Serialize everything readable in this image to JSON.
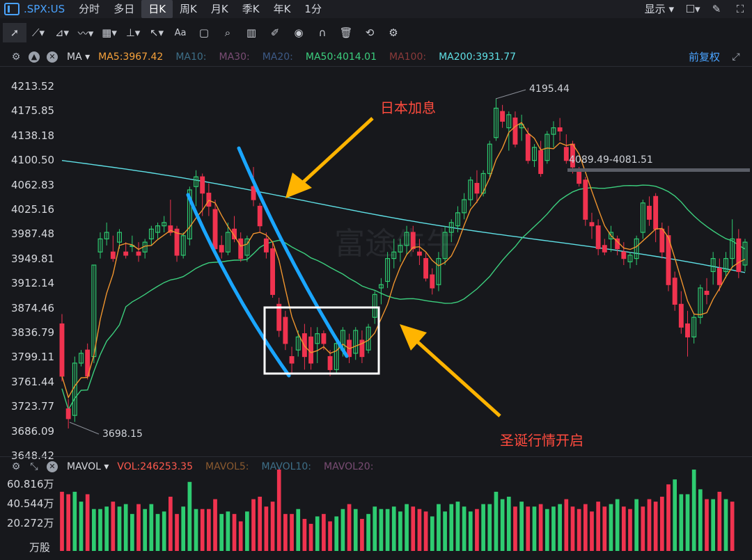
{
  "header": {
    "symbol": ".SPX:US",
    "tabs": [
      "分时",
      "多日",
      "日K",
      "周K",
      "月K",
      "季K",
      "年K",
      "1分"
    ],
    "active_tab": "日K",
    "display_label": "显示"
  },
  "ma_bar": {
    "indicator": "MA",
    "items": [
      {
        "label": "MA5:3967.42",
        "color": "#f7a23b"
      },
      {
        "label": "MA10:",
        "color": "#3e6f88"
      },
      {
        "label": "MA30:",
        "color": "#7a4d74"
      },
      {
        "label": "MA20:",
        "color": "#3d5a86"
      },
      {
        "label": "MA50:4014.01",
        "color": "#3ccf7e"
      },
      {
        "label": "MA100:",
        "color": "#8a3a3a"
      },
      {
        "label": "MA200:3931.77",
        "color": "#5fe0e6"
      }
    ],
    "adjust_label": "前复权"
  },
  "vol_bar": {
    "indicator": "MAVOL",
    "items": [
      {
        "label": "VOL:246253.35",
        "color": "#ff5a4e"
      },
      {
        "label": "MAVOL5:",
        "color": "#8a5a2f"
      },
      {
        "label": "MAVOL10:",
        "color": "#3e6f88"
      },
      {
        "label": "MAVOL20:",
        "color": "#7a4d74"
      }
    ]
  },
  "annotations": {
    "japan_rate_hike": "日本加息",
    "christmas_rally": "圣诞行情开启",
    "high_label": "4195.44",
    "low_label": "3698.15",
    "range_label": "4089.49-4081.51",
    "watermark": "富途牛牛"
  },
  "colors": {
    "up": "#2ecc71",
    "down": "#f0334f",
    "ma5": "#f0952e",
    "ma50": "#3ccf7e",
    "ma200": "#5fe0e6",
    "trend": "#1aa6ff",
    "arrow": "#ffb400"
  },
  "chart_data": {
    "type": "candlestick",
    "price_axis_ticks": [
      "4213.52",
      "4175.85",
      "4138.18",
      "4100.50",
      "4062.83",
      "4025.16",
      "3987.48",
      "3949.81",
      "3912.14",
      "3874.46",
      "3836.79",
      "3799.11",
      "3761.44",
      "3723.77",
      "3686.09",
      "3648.42"
    ],
    "volume_axis_ticks": [
      "60.816万",
      "40.544万",
      "20.272万"
    ],
    "volume_unit": "万股",
    "ylim": [
      3648.42,
      4213.52
    ],
    "candles": [
      [
        3850,
        3865,
        3762,
        3770
      ],
      [
        3720,
        3735,
        3690,
        3705
      ],
      [
        3710,
        3800,
        3700,
        3790
      ],
      [
        3790,
        3810,
        3785,
        3805
      ],
      [
        3810,
        3820,
        3765,
        3770
      ],
      [
        3800,
        3940,
        3790,
        3940
      ],
      [
        3960,
        3990,
        3950,
        3980
      ],
      [
        3980,
        4005,
        3970,
        3990
      ],
      [
        3960,
        3985,
        3945,
        3950
      ],
      [
        3975,
        3995,
        3965,
        3990
      ],
      [
        3960,
        3975,
        3950,
        3955
      ],
      [
        3970,
        3985,
        3960,
        3970
      ],
      [
        3960,
        3975,
        3945,
        3955
      ],
      [
        3960,
        3980,
        3950,
        3975
      ],
      [
        3980,
        4000,
        3970,
        3995
      ],
      [
        3990,
        4005,
        3980,
        4000
      ],
      [
        4000,
        4015,
        3990,
        4005
      ],
      [
        4000,
        4040,
        3985,
        3990
      ],
      [
        3995,
        4000,
        3945,
        3955
      ],
      [
        3955,
        3990,
        3950,
        3985
      ],
      [
        3980,
        4060,
        3970,
        4055
      ],
      [
        4060,
        4085,
        4030,
        4075
      ],
      [
        4075,
        4080,
        4015,
        4050
      ],
      [
        4050,
        4065,
        4015,
        4030
      ],
      [
        4025,
        4040,
        3960,
        3965
      ],
      [
        3970,
        3985,
        3950,
        3960
      ],
      [
        3960,
        4005,
        3955,
        3990
      ],
      [
        3995,
        4015,
        3975,
        3980
      ],
      [
        3980,
        3990,
        3945,
        3950
      ],
      [
        3955,
        3985,
        3945,
        3980
      ],
      [
        4060,
        4090,
        4030,
        4040
      ],
      [
        4030,
        4035,
        3990,
        4000
      ],
      [
        3980,
        3990,
        3950,
        3960
      ],
      [
        3965,
        3975,
        3890,
        3895
      ],
      [
        3880,
        3890,
        3830,
        3840
      ],
      [
        3860,
        3870,
        3810,
        3820
      ],
      [
        3800,
        3815,
        3775,
        3790
      ],
      [
        3810,
        3840,
        3800,
        3830
      ],
      [
        3835,
        3850,
        3780,
        3800
      ],
      [
        3830,
        3845,
        3780,
        3790
      ],
      [
        3820,
        3845,
        3790,
        3835
      ],
      [
        3835,
        3840,
        3810,
        3820
      ],
      [
        3800,
        3810,
        3770,
        3780
      ],
      [
        3780,
        3825,
        3775,
        3820
      ],
      [
        3810,
        3845,
        3800,
        3840
      ],
      [
        3825,
        3835,
        3790,
        3800
      ],
      [
        3805,
        3845,
        3795,
        3840
      ],
      [
        3825,
        3840,
        3790,
        3800
      ],
      [
        3810,
        3850,
        3805,
        3845
      ],
      [
        3860,
        3900,
        3850,
        3895
      ],
      [
        3905,
        3920,
        3880,
        3910
      ],
      [
        3915,
        3960,
        3905,
        3950
      ],
      [
        3950,
        3980,
        3935,
        3960
      ],
      [
        3960,
        3980,
        3945,
        3970
      ],
      [
        3970,
        4000,
        3955,
        3990
      ],
      [
        3990,
        4000,
        3960,
        3965
      ],
      [
        3960,
        3980,
        3940,
        3955
      ],
      [
        3950,
        3960,
        3915,
        3920
      ],
      [
        3925,
        3935,
        3895,
        3905
      ],
      [
        3910,
        3960,
        3900,
        3950
      ],
      [
        3950,
        4000,
        3940,
        3990
      ],
      [
        3990,
        4010,
        3975,
        4005
      ],
      [
        4000,
        4030,
        3990,
        4020
      ],
      [
        4020,
        4050,
        4010,
        4040
      ],
      [
        4040,
        4075,
        4030,
        4070
      ],
      [
        4065,
        4085,
        4035,
        4050
      ],
      [
        4050,
        4085,
        4045,
        4080
      ],
      [
        4080,
        4130,
        4075,
        4125
      ],
      [
        4135,
        4195,
        4130,
        4180
      ],
      [
        4175,
        4185,
        4150,
        4160
      ],
      [
        4150,
        4175,
        4115,
        4170
      ],
      [
        4165,
        4175,
        4120,
        4125
      ],
      [
        4150,
        4170,
        4130,
        4155
      ],
      [
        4140,
        4150,
        4095,
        4100
      ],
      [
        4100,
        4125,
        4090,
        4120
      ],
      [
        4115,
        4130,
        4075,
        4080
      ],
      [
        4100,
        4145,
        4095,
        4140
      ],
      [
        4140,
        4160,
        4120,
        4150
      ],
      [
        4150,
        4165,
        4130,
        4145
      ],
      [
        4120,
        4140,
        4095,
        4100
      ],
      [
        4125,
        4130,
        4080,
        4090
      ],
      [
        4085,
        4090,
        4060,
        4065
      ],
      [
        4070,
        4075,
        4000,
        4010
      ],
      [
        4005,
        4020,
        3980,
        4000
      ],
      [
        4000,
        4010,
        3955,
        3965
      ],
      [
        3970,
        3980,
        3955,
        3960
      ],
      [
        3980,
        4000,
        3960,
        3990
      ],
      [
        3980,
        3985,
        3955,
        3965
      ],
      [
        3960,
        3975,
        3940,
        3950
      ],
      [
        3945,
        3960,
        3935,
        3955
      ],
      [
        3950,
        3985,
        3940,
        3980
      ],
      [
        3990,
        4040,
        3980,
        4035
      ],
      [
        4030,
        4045,
        4000,
        4010
      ],
      [
        4045,
        4050,
        3975,
        3995
      ],
      [
        3995,
        4005,
        3950,
        3960
      ],
      [
        3985,
        4000,
        3900,
        3910
      ],
      [
        3920,
        3930,
        3870,
        3880
      ],
      [
        3880,
        3900,
        3835,
        3845
      ],
      [
        3850,
        3870,
        3800,
        3830
      ],
      [
        3830,
        3865,
        3820,
        3860
      ],
      [
        3860,
        3910,
        3850,
        3905
      ],
      [
        3900,
        3920,
        3880,
        3895
      ],
      [
        3930,
        3960,
        3910,
        3950
      ],
      [
        3935,
        3950,
        3900,
        3910
      ],
      [
        3930,
        3960,
        3920,
        3950
      ],
      [
        3950,
        4010,
        3935,
        3980
      ],
      [
        3980,
        3995,
        3920,
        3930
      ],
      [
        3940,
        3980,
        3930,
        3975
      ]
    ],
    "volumes": [
      [
        24,
        0
      ],
      [
        23,
        0
      ],
      [
        24,
        1
      ],
      [
        20,
        1
      ],
      [
        23,
        0
      ],
      [
        17,
        1
      ],
      [
        17,
        1
      ],
      [
        18,
        1
      ],
      [
        20,
        0
      ],
      [
        18,
        1
      ],
      [
        19,
        1
      ],
      [
        15,
        1
      ],
      [
        19,
        0
      ],
      [
        17,
        1
      ],
      [
        19,
        1
      ],
      [
        15,
        1
      ],
      [
        16,
        1
      ],
      [
        22,
        0
      ],
      [
        15,
        0
      ],
      [
        18,
        1
      ],
      [
        28,
        1
      ],
      [
        17,
        1
      ],
      [
        17,
        0
      ],
      [
        17,
        0
      ],
      [
        21,
        0
      ],
      [
        15,
        1
      ],
      [
        16,
        1
      ],
      [
        15,
        0
      ],
      [
        12,
        0
      ],
      [
        16,
        1
      ],
      [
        21,
        0
      ],
      [
        22,
        0
      ],
      [
        18,
        0
      ],
      [
        20,
        0
      ],
      [
        33,
        0
      ],
      [
        15,
        0
      ],
      [
        15,
        0
      ],
      [
        17,
        1
      ],
      [
        13,
        0
      ],
      [
        11,
        0
      ],
      [
        14,
        1
      ],
      [
        15,
        0
      ],
      [
        12,
        0
      ],
      [
        14,
        1
      ],
      [
        17,
        1
      ],
      [
        19,
        0
      ],
      [
        17,
        1
      ],
      [
        13,
        0
      ],
      [
        15,
        1
      ],
      [
        18,
        1
      ],
      [
        17,
        1
      ],
      [
        17,
        1
      ],
      [
        18,
        1
      ],
      [
        16,
        1
      ],
      [
        19,
        1
      ],
      [
        18,
        0
      ],
      [
        17,
        0
      ],
      [
        16,
        0
      ],
      [
        14,
        1
      ],
      [
        19,
        1
      ],
      [
        16,
        1
      ],
      [
        19,
        1
      ],
      [
        20,
        1
      ],
      [
        18,
        1
      ],
      [
        16,
        1
      ],
      [
        17,
        0
      ],
      [
        19,
        1
      ],
      [
        19,
        1
      ],
      [
        24,
        1
      ],
      [
        21,
        1
      ],
      [
        22,
        1
      ],
      [
        18,
        0
      ],
      [
        20,
        1
      ],
      [
        18,
        0
      ],
      [
        18,
        1
      ],
      [
        19,
        0
      ],
      [
        17,
        1
      ],
      [
        18,
        1
      ],
      [
        19,
        1
      ],
      [
        21,
        0
      ],
      [
        18,
        0
      ],
      [
        17,
        0
      ],
      [
        19,
        0
      ],
      [
        16,
        0
      ],
      [
        20,
        0
      ],
      [
        18,
        0
      ],
      [
        19,
        1
      ],
      [
        21,
        1
      ],
      [
        18,
        0
      ],
      [
        17,
        0
      ],
      [
        21,
        1
      ],
      [
        18,
        0
      ],
      [
        21,
        0
      ],
      [
        20,
        0
      ],
      [
        22,
        0
      ],
      [
        27,
        0
      ],
      [
        29,
        1
      ],
      [
        23,
        1
      ],
      [
        23,
        1
      ],
      [
        33,
        1
      ],
      [
        25,
        1
      ],
      [
        21,
        0
      ],
      [
        21,
        1
      ],
      [
        24,
        0
      ],
      [
        21,
        1
      ],
      [
        20,
        0
      ]
    ]
  }
}
